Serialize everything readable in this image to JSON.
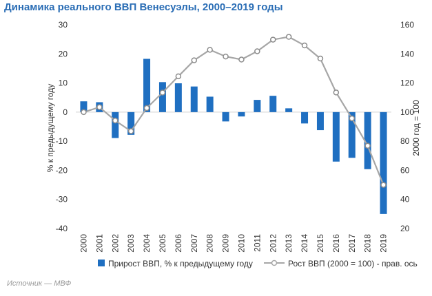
{
  "page": {
    "title": "Динамика реального ВВП Венесуэлы, 2000–2019 годы",
    "source": "Источник — МВФ"
  },
  "chart_data": {
    "type": "bar",
    "categories": [
      "2000",
      "2001",
      "2002",
      "2003",
      "2004",
      "2005",
      "2006",
      "2007",
      "2008",
      "2009",
      "2010",
      "2011",
      "2012",
      "2013",
      "2014",
      "2015",
      "2016",
      "2017",
      "2018",
      "2019"
    ],
    "series": [
      {
        "name": "Прирост ВВП, % к предыдущему году",
        "type": "bar",
        "axis": "left",
        "color": "#1f6fc1",
        "values": [
          3.7,
          3.4,
          -8.9,
          -7.8,
          18.3,
          10.3,
          9.9,
          8.8,
          5.3,
          -3.2,
          -1.5,
          4.2,
          5.6,
          1.3,
          -3.9,
          -6.2,
          -17.0,
          -15.7,
          -19.6,
          -35.0
        ]
      },
      {
        "name": "Рост ВВП (2000 = 100) - прав. ось",
        "type": "line",
        "axis": "right",
        "color": "#a6a6a6",
        "values": [
          100.0,
          103.4,
          94.2,
          86.9,
          102.8,
          113.4,
          124.6,
          135.6,
          142.8,
          138.2,
          136.1,
          141.8,
          149.8,
          151.7,
          145.8,
          136.8,
          113.5,
          95.7,
          76.9,
          50.0
        ]
      }
    ],
    "y_left": {
      "label": "% к предыдущему году",
      "ylim": [
        -40,
        30
      ],
      "ticks": [
        30,
        20,
        10,
        0,
        -10,
        -20,
        -30,
        -40
      ]
    },
    "y_right": {
      "label": "2000 год = 100",
      "ylim": [
        20,
        160
      ],
      "ticks": [
        160,
        140,
        120,
        100,
        80,
        60,
        40,
        20
      ]
    },
    "grid": false,
    "legend": "bottom"
  }
}
